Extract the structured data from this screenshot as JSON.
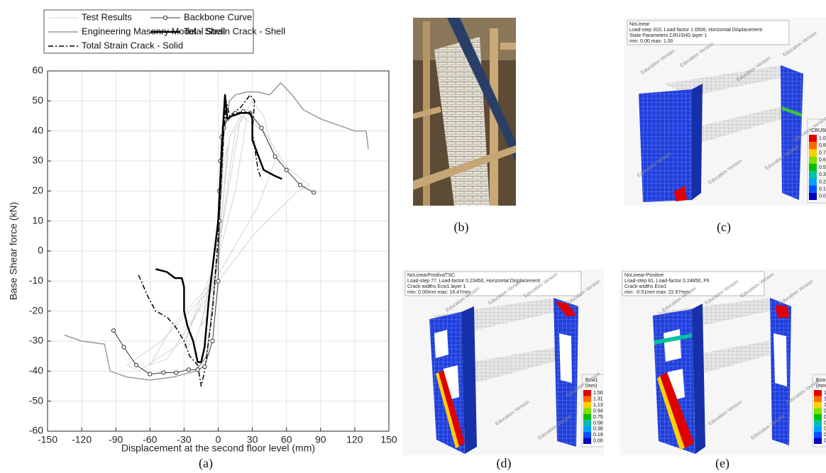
{
  "chart_data": {
    "type": "line",
    "xlabel": "Displacement at the second floor level (mm)",
    "ylabel": "Base Shear force (kN)",
    "caption": "(a)",
    "xlim": [
      -150,
      150
    ],
    "xticks": [
      -150,
      -120,
      -90,
      -60,
      -30,
      0,
      30,
      60,
      90,
      120,
      150
    ],
    "ylim": [
      -60,
      60
    ],
    "yticks": [
      -60,
      -50,
      -40,
      -30,
      -20,
      -10,
      0,
      10,
      20,
      30,
      40,
      50,
      60
    ],
    "grid": true,
    "series": [
      {
        "name": "Test Results",
        "color": "#d3d3d3",
        "linewidth": 1,
        "linestyle": "solid",
        "x": [
          0,
          5,
          8,
          5,
          0,
          -10,
          -15,
          -10,
          0,
          null,
          0,
          10,
          20,
          25,
          15,
          0,
          -20,
          -30,
          -20,
          0,
          null,
          0,
          15,
          30,
          40,
          50,
          35,
          0,
          -40,
          -60,
          -45,
          0,
          null,
          0,
          20,
          40,
          60,
          80,
          70,
          30,
          0,
          -50,
          -80,
          -70,
          -30,
          0
        ],
        "values": [
          0,
          20,
          35,
          30,
          5,
          -15,
          -25,
          -22,
          0,
          null,
          0,
          38,
          45,
          44,
          20,
          -2,
          -20,
          -32,
          -30,
          -5,
          null,
          0,
          40,
          50,
          45,
          30,
          15,
          -8,
          -25,
          -38,
          -36,
          -10,
          null,
          0,
          45,
          40,
          28,
          22,
          20,
          5,
          -10,
          -30,
          -38,
          -40,
          -30,
          -5
        ]
      },
      {
        "name": "Engineering Masonry Model - Shell",
        "color": "#9a9a9a",
        "linewidth": 1.5,
        "linestyle": "solid",
        "x": [
          -135,
          -120,
          -100,
          -95,
          -80,
          -60,
          -40,
          -20,
          -10,
          0,
          5,
          10,
          15,
          25,
          35,
          45,
          55,
          65,
          75,
          90,
          105,
          120,
          130,
          132
        ],
        "values": [
          -28,
          -30,
          -31,
          -40,
          -42,
          -43,
          -42,
          -40,
          -35,
          0,
          40,
          50,
          52,
          53,
          53,
          52,
          56,
          52,
          47,
          44,
          42,
          40,
          40,
          34
        ]
      },
      {
        "name": "Total Strain Crack - Solid",
        "color": "#000000",
        "linewidth": 1.5,
        "linestyle": "dashdot",
        "x": [
          -70,
          -62,
          -55,
          -45,
          -38,
          -30,
          -25,
          -18,
          -15,
          -12,
          -5,
          0,
          5,
          7,
          10,
          20,
          28,
          32,
          30,
          35,
          38
        ],
        "values": [
          -8,
          -15,
          -20,
          -22,
          -25,
          -30,
          -35,
          -38,
          -45,
          -40,
          -20,
          5,
          40,
          50,
          45,
          48,
          52,
          50,
          40,
          27,
          24
        ]
      },
      {
        "name": "Backbone Curve",
        "color": "#333333",
        "linewidth": 1,
        "linestyle": "solid",
        "marker": "o",
        "x": [
          -92,
          -83,
          -72,
          -60,
          -48,
          -37,
          -26,
          -18,
          -12,
          -5,
          0,
          1,
          1,
          2,
          3,
          5,
          8,
          15,
          22,
          28,
          38,
          50,
          60,
          72,
          84
        ],
        "values": [
          -26.5,
          -32,
          -38,
          -41,
          -40.5,
          -40.5,
          -39.5,
          -39.5,
          -38.5,
          -30,
          -10,
          10,
          20,
          30,
          38,
          41,
          44,
          46,
          46.5,
          46,
          41,
          31.5,
          27,
          22,
          19.5
        ]
      },
      {
        "name": "Total Strain Crack - Shell",
        "color": "#000000",
        "linewidth": 2.5,
        "linestyle": "solid",
        "x": [
          -55,
          -45,
          -38,
          -32,
          -30,
          -30,
          -27,
          -22,
          -18,
          -15,
          -12,
          -8,
          0,
          4,
          6,
          8,
          12,
          20,
          28,
          30,
          30,
          40,
          50,
          56
        ],
        "values": [
          -6,
          -7,
          -9,
          -9,
          -12,
          -20,
          -25,
          -30,
          -37,
          -37,
          -32,
          -15,
          10,
          40,
          52,
          44,
          45,
          46,
          46,
          44,
          37,
          27,
          25,
          24
        ]
      }
    ]
  },
  "watermark": "Education Version",
  "panels": [
    {
      "caption": "(b)"
    },
    {
      "caption": "(c)",
      "header": [
        "NoLinear",
        "Load-step 310, Load-factor 1.0500, Horizontal Displacement",
        "State Parameters CRUSHD layer 1",
        "min: 0.00 max: 1.00"
      ],
      "legend_title": [
        "CRUSH"
      ],
      "legend_values": [
        "1.0",
        "0.8",
        "0.7",
        "0.6",
        "0.5",
        "0.3",
        "0.2",
        "0.1",
        "0.0"
      ]
    },
    {
      "caption": "(d)",
      "header": [
        "NoLinearPositivaTSC",
        "Load-step 77, Load-factor 0.23450, Horizontal Displacement",
        "Crack-widths Ecw1 layer 1",
        "min: 0.00mm max: 16.47mm"
      ],
      "legend_title": [
        "Ecw1",
        "(mm)"
      ],
      "legend_values": [
        "1.50",
        "1.31",
        "1.13",
        "0.94",
        "0.75",
        "0.56",
        "0.38",
        "0.19",
        "0.00"
      ]
    },
    {
      "caption": "(e)",
      "header": [
        "NoLinear-Positive",
        "Load-step 81, Load-factor 0.24850, Fh",
        "Crack-widths Ecw1",
        "min: -0.51mm max: 22.67mm"
      ],
      "legend_title": [
        "Ecw",
        "(mm"
      ],
      "legend_values": [
        "1.5",
        "1.3",
        "1.1",
        "0.9",
        "0.7",
        "0.5",
        "0.3",
        "0.1",
        "0.0"
      ]
    }
  ]
}
